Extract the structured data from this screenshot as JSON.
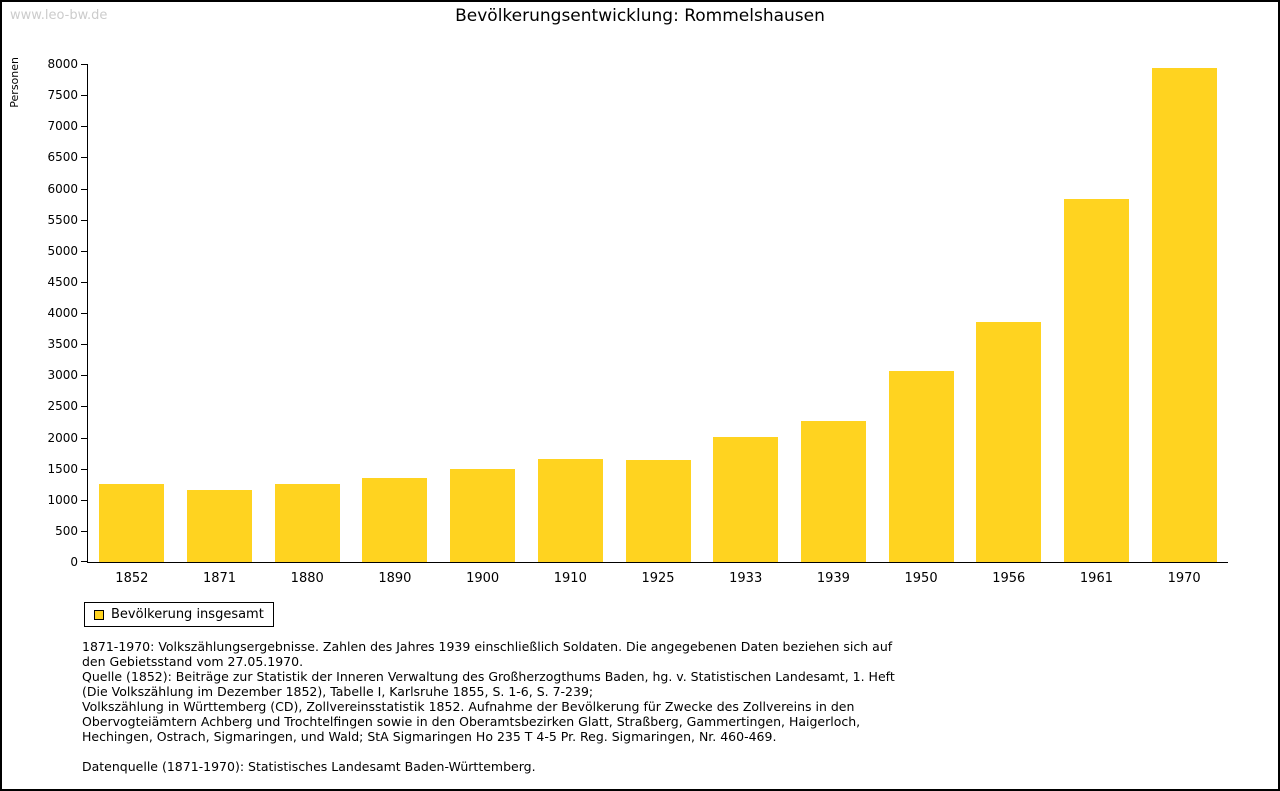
{
  "watermark": "www.leo-bw.de",
  "chart_data": {
    "type": "bar",
    "title": "Bevölkerungsentwicklung: Rommelshausen",
    "ylabel": "Personen",
    "xlabel": "",
    "categories": [
      "1852",
      "1871",
      "1880",
      "1890",
      "1900",
      "1910",
      "1925",
      "1933",
      "1939",
      "1950",
      "1956",
      "1961",
      "1970"
    ],
    "values": [
      1250,
      1155,
      1260,
      1345,
      1500,
      1650,
      1645,
      2000,
      2260,
      3075,
      3860,
      5830,
      7935
    ],
    "ylim": [
      0,
      8000
    ],
    "ytick_step": 500,
    "grid": false,
    "bar_color": "#FFD320",
    "legend_position": "bottom-left",
    "legend": [
      {
        "label": "Bevölkerung insgesamt",
        "color": "#FFD320"
      }
    ]
  },
  "notes": {
    "para1": "1871-1970: Volkszählungsergebnisse. Zahlen des Jahres 1939 einschließlich Soldaten. Die angegebenen Daten beziehen sich auf den Gebietsstand vom 27.05.1970.",
    "para2": "Quelle (1852): Beiträge zur Statistik der Inneren Verwaltung des Großherzogthums Baden, hg. v. Statistischen Landesamt, 1. Heft (Die Volkszählung im Dezember 1852), Tabelle I, Karlsruhe 1855, S. 1-6, S. 7-239;",
    "para3": "Volkszählung in Württemberg (CD), Zollvereinsstatistik 1852. Aufnahme der Bevölkerung für Zwecke des Zollvereins in den Obervogteiämtern Achberg und Trochtelfingen sowie in den Oberamtsbezirken Glatt, Straßberg, Gammertingen, Haigerloch, Hechingen, Ostrach, Sigmaringen, und Wald; StA Sigmaringen Ho 235 T 4-5 Pr. Reg. Sigmaringen, Nr. 460-469.",
    "para4": "Datenquelle (1871-1970): Statistisches Landesamt Baden-Württemberg."
  }
}
